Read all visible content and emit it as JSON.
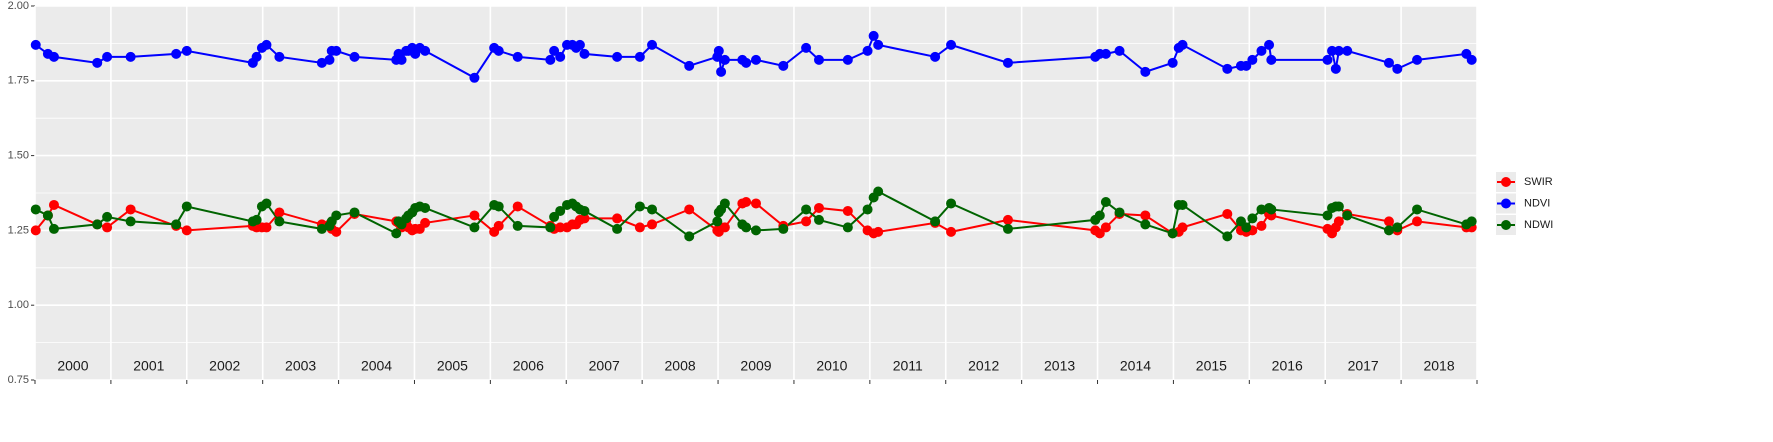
{
  "chart_data": {
    "type": "line",
    "x": [
      2000.01,
      2000.17,
      2000.25,
      2000.82,
      2000.95,
      2001.26,
      2001.86,
      2002.0,
      2002.87,
      2002.92,
      2002.99,
      2003.05,
      2003.22,
      2003.78,
      2003.88,
      2003.91,
      2003.97,
      2004.21,
      2004.76,
      2004.79,
      2004.83,
      2004.89,
      2004.92,
      2004.97,
      2005.01,
      2005.07,
      2005.14,
      2005.79,
      2006.05,
      2006.11,
      2006.36,
      2006.79,
      2006.84,
      2006.92,
      2007.01,
      2007.08,
      2007.13,
      2007.18,
      2007.24,
      2007.67,
      2007.97,
      2008.13,
      2008.62,
      2008.99,
      2009.01,
      2009.04,
      2009.09,
      2009.32,
      2009.37,
      2009.5,
      2009.86,
      2010.16,
      2010.33,
      2010.71,
      2010.97,
      2011.05,
      2011.11,
      2011.86,
      2012.07,
      2012.82,
      2013.97,
      2014.03,
      2014.11,
      2014.29,
      2014.63,
      2014.99,
      2015.07,
      2015.12,
      2015.71,
      2015.89,
      2015.96,
      2016.04,
      2016.16,
      2016.26,
      2016.29,
      2017.03,
      2017.09,
      2017.14,
      2017.18,
      2017.29,
      2017.84,
      2017.95,
      2018.21,
      2018.86,
      2018.93
    ],
    "series": [
      {
        "name": "SWIR",
        "color": "#ff0000",
        "values": [
          1.25,
          1.3,
          1.335,
          1.27,
          1.26,
          1.32,
          1.265,
          1.25,
          1.265,
          1.26,
          1.26,
          1.26,
          1.31,
          1.27,
          1.27,
          1.255,
          1.245,
          1.305,
          1.28,
          1.275,
          1.26,
          1.28,
          1.26,
          1.25,
          1.255,
          1.255,
          1.275,
          1.3,
          1.245,
          1.265,
          1.33,
          1.265,
          1.255,
          1.26,
          1.26,
          1.27,
          1.27,
          1.285,
          1.29,
          1.29,
          1.26,
          1.27,
          1.32,
          1.25,
          1.245,
          1.26,
          1.26,
          1.34,
          1.345,
          1.34,
          1.265,
          1.28,
          1.325,
          1.315,
          1.25,
          1.24,
          1.245,
          1.275,
          1.245,
          1.285,
          1.25,
          1.24,
          1.26,
          1.305,
          1.3,
          1.24,
          1.245,
          1.26,
          1.305,
          1.25,
          1.245,
          1.25,
          1.265,
          1.305,
          1.3,
          1.255,
          1.24,
          1.26,
          1.28,
          1.305,
          1.28,
          1.25,
          1.28,
          1.26,
          1.26
        ]
      },
      {
        "name": "NDVI",
        "color": "#0000ff",
        "values": [
          1.87,
          1.84,
          1.83,
          1.81,
          1.83,
          1.83,
          1.84,
          1.85,
          1.81,
          1.83,
          1.86,
          1.87,
          1.83,
          1.81,
          1.82,
          1.85,
          1.85,
          1.83,
          1.82,
          1.84,
          1.82,
          1.85,
          1.85,
          1.86,
          1.84,
          1.86,
          1.85,
          1.76,
          1.86,
          1.85,
          1.83,
          1.82,
          1.85,
          1.83,
          1.87,
          1.87,
          1.86,
          1.87,
          1.84,
          1.83,
          1.83,
          1.87,
          1.8,
          1.83,
          1.85,
          1.78,
          1.82,
          1.82,
          1.81,
          1.82,
          1.8,
          1.86,
          1.82,
          1.82,
          1.85,
          1.9,
          1.87,
          1.83,
          1.87,
          1.81,
          1.83,
          1.84,
          1.84,
          1.85,
          1.78,
          1.81,
          1.86,
          1.87,
          1.79,
          1.8,
          1.8,
          1.82,
          1.85,
          1.87,
          1.82,
          1.82,
          1.85,
          1.79,
          1.85,
          1.85,
          1.81,
          1.79,
          1.82,
          1.84,
          1.82
        ]
      },
      {
        "name": "NDWI",
        "color": "#006400",
        "values": [
          1.32,
          1.3,
          1.255,
          1.27,
          1.295,
          1.28,
          1.27,
          1.33,
          1.28,
          1.285,
          1.33,
          1.34,
          1.28,
          1.255,
          1.265,
          1.28,
          1.3,
          1.31,
          1.24,
          1.28,
          1.27,
          1.29,
          1.3,
          1.31,
          1.325,
          1.33,
          1.325,
          1.26,
          1.335,
          1.33,
          1.265,
          1.26,
          1.295,
          1.315,
          1.335,
          1.34,
          1.33,
          1.32,
          1.315,
          1.255,
          1.33,
          1.32,
          1.23,
          1.28,
          1.31,
          1.32,
          1.34,
          1.27,
          1.26,
          1.25,
          1.255,
          1.32,
          1.285,
          1.26,
          1.32,
          1.36,
          1.38,
          1.28,
          1.34,
          1.255,
          1.285,
          1.3,
          1.345,
          1.31,
          1.27,
          1.24,
          1.335,
          1.335,
          1.23,
          1.28,
          1.26,
          1.29,
          1.32,
          1.325,
          1.32,
          1.3,
          1.325,
          1.33,
          1.33,
          1.3,
          1.25,
          1.26,
          1.32,
          1.27,
          1.28
        ]
      }
    ],
    "xlim": [
      2000,
      2019
    ],
    "xticks": [
      2000,
      2001,
      2002,
      2003,
      2004,
      2005,
      2006,
      2007,
      2008,
      2009,
      2010,
      2011,
      2012,
      2013,
      2014,
      2015,
      2016,
      2017,
      2018,
      2019
    ],
    "year_labels": [
      "2000",
      "2001",
      "2002",
      "2003",
      "2004",
      "2005",
      "2006",
      "2007",
      "2008",
      "2009",
      "2010",
      "2011",
      "2012",
      "2013",
      "2014",
      "2015",
      "2016",
      "2017",
      "2018"
    ],
    "ylim": [
      0.75,
      2.0
    ],
    "yticks": [
      {
        "value": 0.75,
        "label": "0.75"
      },
      {
        "value": 1.0,
        "label": "1.00"
      },
      {
        "value": 1.25,
        "label": "1.25"
      },
      {
        "value": 1.5,
        "label": "1.50"
      },
      {
        "value": 1.75,
        "label": "1.75"
      },
      {
        "value": 2.0,
        "label": "2.00"
      }
    ],
    "grid": true,
    "legend": "right"
  }
}
